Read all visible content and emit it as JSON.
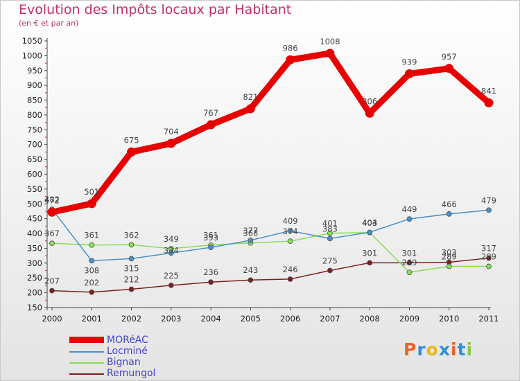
{
  "title": "Evolution des Impôts locaux par Habitant",
  "subtitle": "(en € et par an)",
  "logo_text": "Proxiti",
  "logo_colors": [
    "#e8632b",
    "#2f8fd3",
    "#e8b81e",
    "#2f8fd3",
    "#e8632b",
    "#2f8fd3",
    "#8dc63f"
  ],
  "chart_data": {
    "type": "line",
    "title": "Evolution des Impôts locaux par Habitant",
    "subtitle": "(en € et par an)",
    "x": [
      "2000",
      "2001",
      "2002",
      "2003",
      "2004",
      "2005",
      "2006",
      "2007",
      "2008",
      "2009",
      "2010",
      "2011"
    ],
    "yticks": [
      "150",
      "200",
      "250",
      "300",
      "350",
      "400",
      "450",
      "500",
      "550",
      "600",
      "650",
      "700",
      "750",
      "800",
      "850",
      "900",
      "950",
      "1000",
      "1050"
    ],
    "ylim": [
      150,
      1050
    ],
    "xlabel": "",
    "ylabel": "",
    "grid": false,
    "legend_position": "bottom-left",
    "series": [
      {
        "name": "MORéAC",
        "color": "#e80000",
        "values": [
          472,
          501,
          675,
          704,
          767,
          821,
          986,
          1008,
          806,
          939,
          957,
          841
        ]
      },
      {
        "name": "Locminé",
        "color": "#4a90c8",
        "values": [
          482,
          308,
          315,
          334,
          353,
          377,
          409,
          383,
          404,
          449,
          466,
          479
        ]
      },
      {
        "name": "Bignan",
        "color": "#88dd55",
        "values": [
          367,
          361,
          362,
          349,
          361,
          368,
          374,
          401,
          403,
          269,
          289,
          289
        ]
      },
      {
        "name": "Remungol",
        "color": "#7a1f1f",
        "values": [
          207,
          202,
          212,
          225,
          236,
          243,
          246,
          275,
          301,
          301,
          303,
          317
        ]
      }
    ]
  }
}
